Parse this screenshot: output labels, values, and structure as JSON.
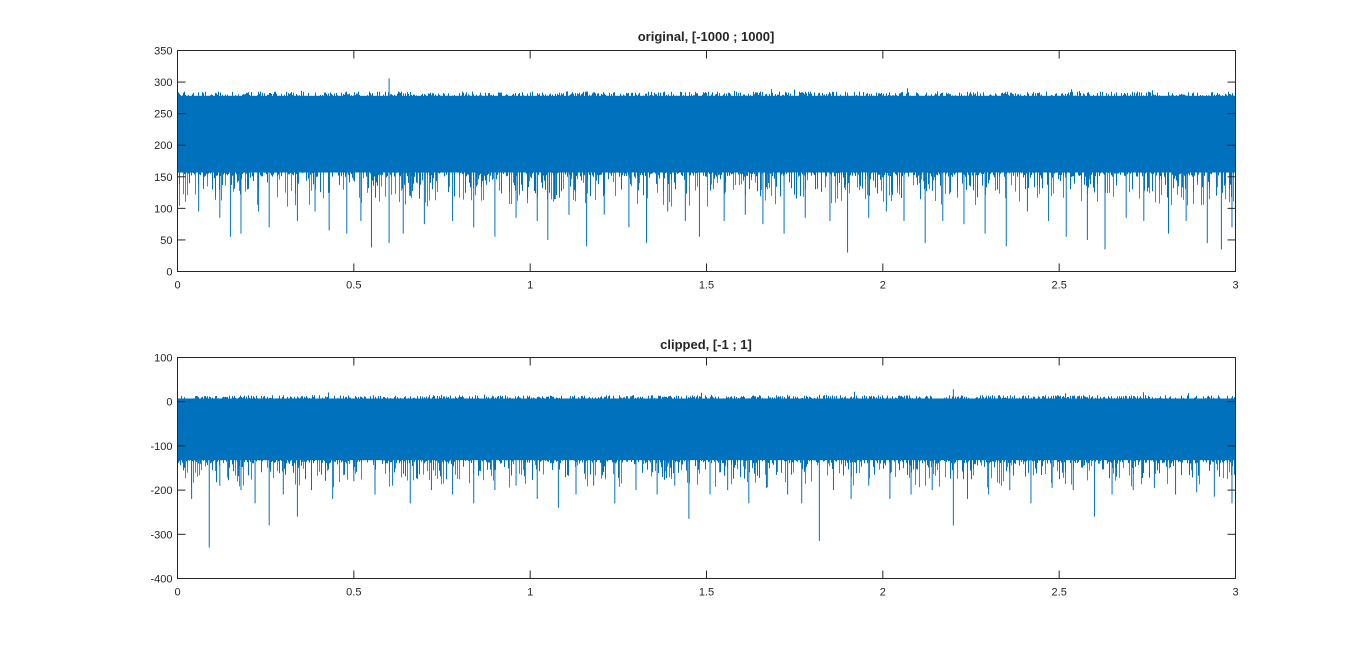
{
  "figure": {
    "background": "#ffffff",
    "line_color": "#0072BD",
    "axis_color": "#262626"
  },
  "chart_data": [
    {
      "type": "line",
      "title": "original, [-1000 ; 1000]",
      "xlabel": "",
      "ylabel": "",
      "xlim": [
        0,
        3
      ],
      "ylim": [
        0,
        350
      ],
      "xticks": [
        0,
        0.5,
        1,
        1.5,
        2,
        2.5,
        3
      ],
      "xtick_labels": [
        "0",
        "0.5",
        "1",
        "1.5",
        "2",
        "2.5",
        "3"
      ],
      "yticks": [
        0,
        50,
        100,
        150,
        200,
        250,
        300,
        350
      ],
      "ytick_labels": [
        "0",
        "50",
        "100",
        "150",
        "200",
        "250",
        "300",
        "350"
      ],
      "grid": false,
      "series": [
        {
          "color": "#0072BD",
          "band": {
            "x_start": 0,
            "x_end": 3,
            "dense_upper": 285,
            "dense_lower": 150,
            "max_peak": 306,
            "max_peak_x": 0.6
          },
          "dips": [
            [
              0.06,
              95
            ],
            [
              0.12,
              85
            ],
            [
              0.15,
              55
            ],
            [
              0.18,
              60
            ],
            [
              0.23,
              95
            ],
            [
              0.26,
              70
            ],
            [
              0.34,
              80
            ],
            [
              0.39,
              95
            ],
            [
              0.43,
              65
            ],
            [
              0.48,
              60
            ],
            [
              0.52,
              80
            ],
            [
              0.55,
              38
            ],
            [
              0.6,
              45
            ],
            [
              0.64,
              60
            ],
            [
              0.7,
              75
            ],
            [
              0.78,
              80
            ],
            [
              0.84,
              70
            ],
            [
              0.9,
              55
            ],
            [
              0.96,
              85
            ],
            [
              1.02,
              80
            ],
            [
              1.05,
              50
            ],
            [
              1.11,
              90
            ],
            [
              1.16,
              40
            ],
            [
              1.21,
              90
            ],
            [
              1.28,
              70
            ],
            [
              1.33,
              45
            ],
            [
              1.39,
              95
            ],
            [
              1.44,
              80
            ],
            [
              1.48,
              55
            ],
            [
              1.55,
              80
            ],
            [
              1.61,
              90
            ],
            [
              1.66,
              75
            ],
            [
              1.72,
              60
            ],
            [
              1.78,
              85
            ],
            [
              1.85,
              80
            ],
            [
              1.9,
              30
            ],
            [
              1.96,
              85
            ],
            [
              2.01,
              95
            ],
            [
              2.06,
              80
            ],
            [
              2.12,
              45
            ],
            [
              2.17,
              80
            ],
            [
              2.23,
              75
            ],
            [
              2.29,
              60
            ],
            [
              2.35,
              40
            ],
            [
              2.41,
              95
            ],
            [
              2.47,
              80
            ],
            [
              2.52,
              55
            ],
            [
              2.58,
              50
            ],
            [
              2.63,
              35
            ],
            [
              2.69,
              85
            ],
            [
              2.74,
              80
            ],
            [
              2.81,
              60
            ],
            [
              2.86,
              80
            ],
            [
              2.92,
              45
            ],
            [
              2.96,
              35
            ],
            [
              2.99,
              70
            ]
          ]
        }
      ]
    },
    {
      "type": "line",
      "title": "clipped, [-1 ; 1]",
      "xlabel": "",
      "ylabel": "",
      "xlim": [
        0,
        3
      ],
      "ylim": [
        -400,
        100
      ],
      "xticks": [
        0,
        0.5,
        1,
        1.5,
        2,
        2.5,
        3
      ],
      "xtick_labels": [
        "0",
        "0.5",
        "1",
        "1.5",
        "2",
        "2.5",
        "3"
      ],
      "yticks": [
        -400,
        -300,
        -200,
        -100,
        0,
        100
      ],
      "ytick_labels": [
        "-400",
        "-300",
        "-200",
        "-100",
        "0",
        "100"
      ],
      "grid": false,
      "series": [
        {
          "color": "#0072BD",
          "band": {
            "x_start": 0,
            "x_end": 3,
            "dense_upper": 15,
            "dense_lower": -140,
            "max_peak": 28,
            "max_peak_x": 2.2
          },
          "dips": [
            [
              0.04,
              -220
            ],
            [
              0.09,
              -330
            ],
            [
              0.12,
              -190
            ],
            [
              0.18,
              -200
            ],
            [
              0.22,
              -230
            ],
            [
              0.26,
              -280
            ],
            [
              0.3,
              -210
            ],
            [
              0.34,
              -260
            ],
            [
              0.38,
              -200
            ],
            [
              0.44,
              -220
            ],
            [
              0.5,
              -180
            ],
            [
              0.56,
              -210
            ],
            [
              0.61,
              -190
            ],
            [
              0.66,
              -230
            ],
            [
              0.72,
              -200
            ],
            [
              0.78,
              -210
            ],
            [
              0.84,
              -230
            ],
            [
              0.9,
              -200
            ],
            [
              0.96,
              -190
            ],
            [
              1.02,
              -220
            ],
            [
              1.08,
              -240
            ],
            [
              1.13,
              -210
            ],
            [
              1.18,
              -190
            ],
            [
              1.24,
              -230
            ],
            [
              1.3,
              -200
            ],
            [
              1.36,
              -210
            ],
            [
              1.41,
              -190
            ],
            [
              1.45,
              -265
            ],
            [
              1.51,
              -210
            ],
            [
              1.56,
              -200
            ],
            [
              1.62,
              -230
            ],
            [
              1.67,
              -195
            ],
            [
              1.73,
              -210
            ],
            [
              1.77,
              -230
            ],
            [
              1.82,
              -315
            ],
            [
              1.86,
              -200
            ],
            [
              1.91,
              -220
            ],
            [
              1.96,
              -190
            ],
            [
              2.02,
              -220
            ],
            [
              2.08,
              -210
            ],
            [
              2.14,
              -200
            ],
            [
              2.2,
              -280
            ],
            [
              2.24,
              -220
            ],
            [
              2.3,
              -210
            ],
            [
              2.36,
              -200
            ],
            [
              2.42,
              -230
            ],
            [
              2.48,
              -195
            ],
            [
              2.54,
              -200
            ],
            [
              2.6,
              -260
            ],
            [
              2.65,
              -210
            ],
            [
              2.71,
              -200
            ],
            [
              2.77,
              -195
            ],
            [
              2.83,
              -210
            ],
            [
              2.89,
              -205
            ],
            [
              2.94,
              -215
            ],
            [
              2.99,
              -230
            ]
          ]
        }
      ]
    }
  ]
}
